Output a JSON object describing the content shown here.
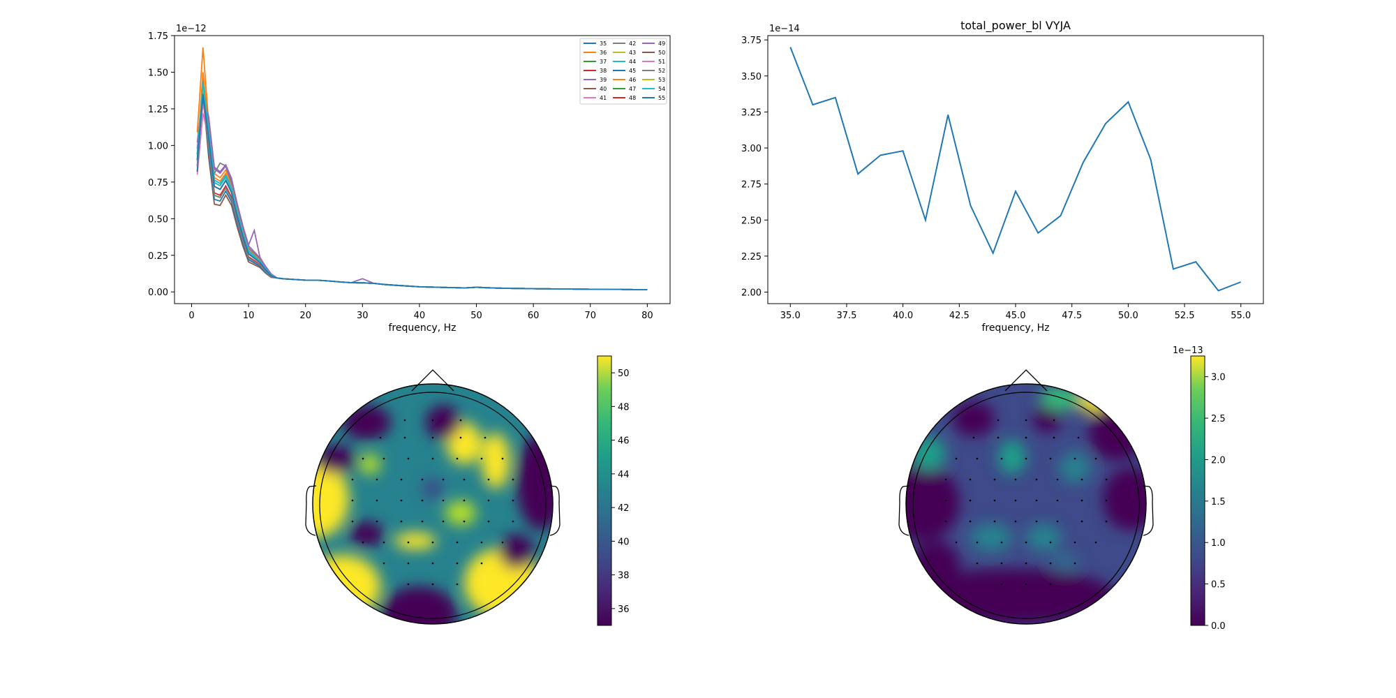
{
  "colors": {
    "tab10": [
      "#1f77b4",
      "#ff7f0e",
      "#2ca02c",
      "#d62728",
      "#9467bd",
      "#8c564b",
      "#e377c2",
      "#7f7f7f",
      "#bcbd22",
      "#17becf"
    ],
    "line": "#1f77b4"
  },
  "chart_data": [
    {
      "type": "line",
      "title": "",
      "xlabel": "frequency, Hz",
      "ylabel": "",
      "y_offset_label": "1e−12",
      "xlim": [
        -3,
        84
      ],
      "ylim": [
        -0.08,
        1.75
      ],
      "xticks": [
        0,
        10,
        20,
        30,
        40,
        50,
        60,
        70,
        80
      ],
      "xtick_labels": [
        "0",
        "10",
        "20",
        "30",
        "40",
        "50",
        "60",
        "70",
        "80"
      ],
      "yticks": [
        0,
        0.25,
        0.5,
        0.75,
        1.0,
        1.25,
        1.5,
        1.75
      ],
      "ytick_labels": [
        "0.00",
        "0.25",
        "0.50",
        "0.75",
        "1.00",
        "1.25",
        "1.50",
        "1.75"
      ],
      "legend_position": "top-right",
      "legend_columns": 3,
      "x": [
        1,
        2,
        3,
        4,
        5,
        6,
        7,
        8,
        9,
        10,
        11,
        12,
        13,
        14,
        15,
        16,
        18,
        20,
        22,
        24,
        26,
        28,
        30,
        32,
        34,
        36,
        38,
        40,
        42,
        45,
        48,
        50,
        52,
        55,
        60,
        65,
        70,
        75,
        80
      ],
      "base": [
        0.9,
        1.45,
        1.05,
        0.72,
        0.7,
        0.76,
        0.68,
        0.52,
        0.38,
        0.26,
        0.23,
        0.2,
        0.15,
        0.11,
        0.095,
        0.09,
        0.085,
        0.08,
        0.08,
        0.075,
        0.068,
        0.063,
        0.062,
        0.058,
        0.05,
        0.045,
        0.04,
        0.035,
        0.033,
        0.03,
        0.027,
        0.032,
        0.028,
        0.025,
        0.022,
        0.02,
        0.018,
        0.017,
        0.015
      ],
      "series": [
        {
          "name": "35",
          "peak": 1.42,
          "offset": 0.0
        },
        {
          "name": "36",
          "peak": 1.67,
          "offset": 0.02
        },
        {
          "name": "37",
          "peak": 1.48,
          "offset": -0.01
        },
        {
          "name": "38",
          "peak": 1.4,
          "offset": 0.01
        },
        {
          "name": "39",
          "peak": 1.38,
          "offset": 0.03
        },
        {
          "name": "40",
          "peak": 1.35,
          "offset": -0.02
        },
        {
          "name": "41",
          "peak": 1.22,
          "offset": 0.0
        },
        {
          "name": "42",
          "peak": 1.36,
          "offset": 0.02
        },
        {
          "name": "43",
          "peak": 1.44,
          "offset": -0.01
        },
        {
          "name": "44",
          "peak": 1.46,
          "offset": 0.01
        },
        {
          "name": "45",
          "peak": 1.39,
          "offset": -0.02
        },
        {
          "name": "46",
          "peak": 1.5,
          "offset": 0.01
        },
        {
          "name": "47",
          "peak": 1.33,
          "offset": 0.0
        },
        {
          "name": "48",
          "peak": 1.37,
          "offset": -0.01
        },
        {
          "name": "49",
          "peak": 1.31,
          "offset": 0.02
        },
        {
          "name": "50",
          "peak": 1.3,
          "offset": 0.0
        },
        {
          "name": "51",
          "peak": 1.28,
          "offset": 0.01
        },
        {
          "name": "52",
          "peak": 1.34,
          "offset": -0.01
        },
        {
          "name": "53",
          "peak": 1.41,
          "offset": 0.0
        },
        {
          "name": "54",
          "peak": 1.43,
          "offset": 0.01
        },
        {
          "name": "55",
          "peak": 1.35,
          "offset": 0.0
        }
      ]
    },
    {
      "type": "line",
      "title": "total_power_bl VYJA",
      "xlabel": "frequency, Hz",
      "ylabel": "",
      "y_offset_label": "1e−14",
      "xlim": [
        34,
        56
      ],
      "ylim": [
        1.92,
        3.78
      ],
      "xticks": [
        35,
        37.5,
        40,
        42.5,
        45,
        47.5,
        50,
        52.5,
        55
      ],
      "xtick_labels": [
        "35.0",
        "37.5",
        "40.0",
        "42.5",
        "45.0",
        "47.5",
        "50.0",
        "52.5",
        "55.0"
      ],
      "yticks": [
        2.0,
        2.25,
        2.5,
        2.75,
        3.0,
        3.25,
        3.5,
        3.75
      ],
      "ytick_labels": [
        "2.00",
        "2.25",
        "2.50",
        "2.75",
        "3.00",
        "3.25",
        "3.50",
        "3.75"
      ],
      "x": [
        35,
        36,
        37,
        38,
        39,
        40,
        41,
        42,
        43,
        44,
        45,
        46,
        47,
        48,
        49,
        50,
        51,
        52,
        53,
        54,
        55
      ],
      "y": [
        3.7,
        3.3,
        3.35,
        2.82,
        2.95,
        2.98,
        2.5,
        3.23,
        2.6,
        2.27,
        2.7,
        2.41,
        2.53,
        2.9,
        3.17,
        3.32,
        2.92,
        2.16,
        2.21,
        2.01,
        2.07
      ]
    },
    {
      "type": "heatmap",
      "subtype": "topomap",
      "colormap": "viridis",
      "colorbar_ticks": [
        36,
        38,
        40,
        42,
        44,
        46,
        48,
        50
      ],
      "colorbar_tick_labels": [
        "36",
        "38",
        "40",
        "42",
        "44",
        "46",
        "48",
        "50"
      ],
      "colorbar_range": [
        35,
        51
      ]
    },
    {
      "type": "heatmap",
      "subtype": "topomap",
      "colormap": "viridis",
      "colorbar_offset_label": "1e−13",
      "colorbar_ticks": [
        0.0,
        0.5,
        1.0,
        1.5,
        2.0,
        2.5,
        3.0
      ],
      "colorbar_tick_labels": [
        "0.0",
        "0.5",
        "1.0",
        "1.5",
        "2.0",
        "2.5",
        "3.0"
      ],
      "colorbar_range": [
        0,
        3.25
      ]
    }
  ]
}
